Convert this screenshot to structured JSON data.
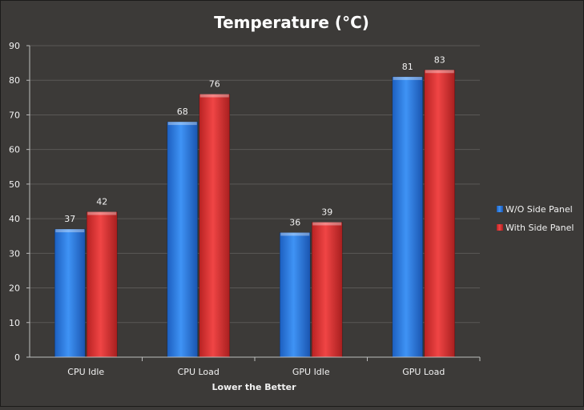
{
  "chart_data": {
    "type": "bar",
    "title": "Temperature (°C)",
    "xlabel": "Lower the Better",
    "ylabel": "",
    "categories": [
      "CPU Idle",
      "CPU Load",
      "GPU Idle",
      "GPU Load"
    ],
    "series": [
      {
        "name": "W/O Side Panel",
        "values": [
          37,
          68,
          36,
          81
        ],
        "color": "#2f7fe0"
      },
      {
        "name": "With Side Panel",
        "values": [
          42,
          76,
          39,
          83
        ],
        "color": "#e03535"
      }
    ],
    "ylim": [
      0,
      90
    ],
    "yticks": [
      0,
      10,
      20,
      30,
      40,
      50,
      60,
      70,
      80,
      90
    ],
    "grid": true,
    "legend": "right"
  }
}
